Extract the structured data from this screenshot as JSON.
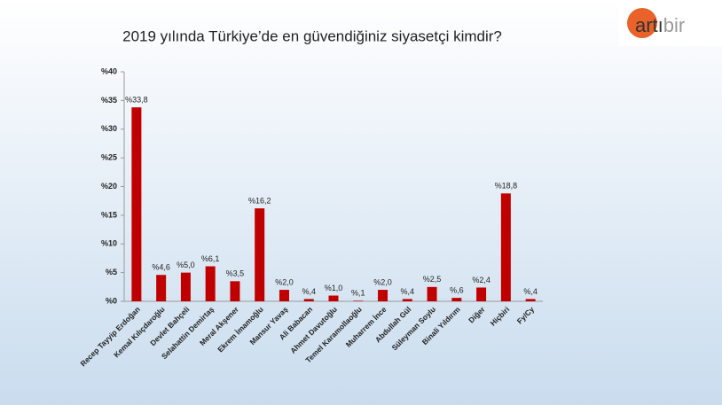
{
  "chart_data": {
    "type": "bar",
    "title": "2019 yılında Türkiye’de en güvendiğiniz siyasetçi kimdir?",
    "logo": [
      "artı",
      "bir"
    ],
    "categories": [
      "Recep Tayyip Erdoğan",
      "Kemal Kılıçdaroğlu",
      "Devlet Bahçeli",
      "Selahattin Demirtaş",
      "Meral Akşener",
      "Ekrem İmamoğlu",
      "Mansur Yavaş",
      "Ali Babacan",
      "Ahmet Davutoğlu",
      "Temel Karamollaoğlu",
      "Muharrem İnce",
      "Abdullah Gül",
      "Süleyman Soylu",
      "Binali Yıldırım",
      "Diğer",
      "Hiçbiri",
      "Fy/Cy"
    ],
    "values": [
      33.8,
      4.6,
      5.0,
      6.1,
      3.5,
      16.2,
      2.0,
      0.4,
      1.0,
      0.1,
      2.0,
      0.4,
      2.5,
      0.6,
      2.4,
      18.8,
      0.4
    ],
    "value_labels": [
      "%33,8",
      "%4,6",
      "%5,0",
      "%6,1",
      "%3,5",
      "%16,2",
      "%2,0",
      "%,4",
      "%1,0",
      "%,1",
      "%2,0",
      "%,4",
      "%2,5",
      "%,6",
      "%2,4",
      "%18,8",
      "%,4"
    ],
    "color": "#c00000",
    "ylim": [
      0,
      40
    ],
    "yticks": [
      {
        "value": 0,
        "label": "%0"
      },
      {
        "value": 5,
        "label": "%5"
      },
      {
        "value": 10,
        "label": "%10"
      },
      {
        "value": 15,
        "label": "%15"
      },
      {
        "value": 20,
        "label": "%20"
      },
      {
        "value": 25,
        "label": "%25"
      },
      {
        "value": 30,
        "label": "%30"
      },
      {
        "value": 35,
        "label": "%35"
      },
      {
        "value": 40,
        "label": "%40"
      }
    ],
    "grid": false
  }
}
